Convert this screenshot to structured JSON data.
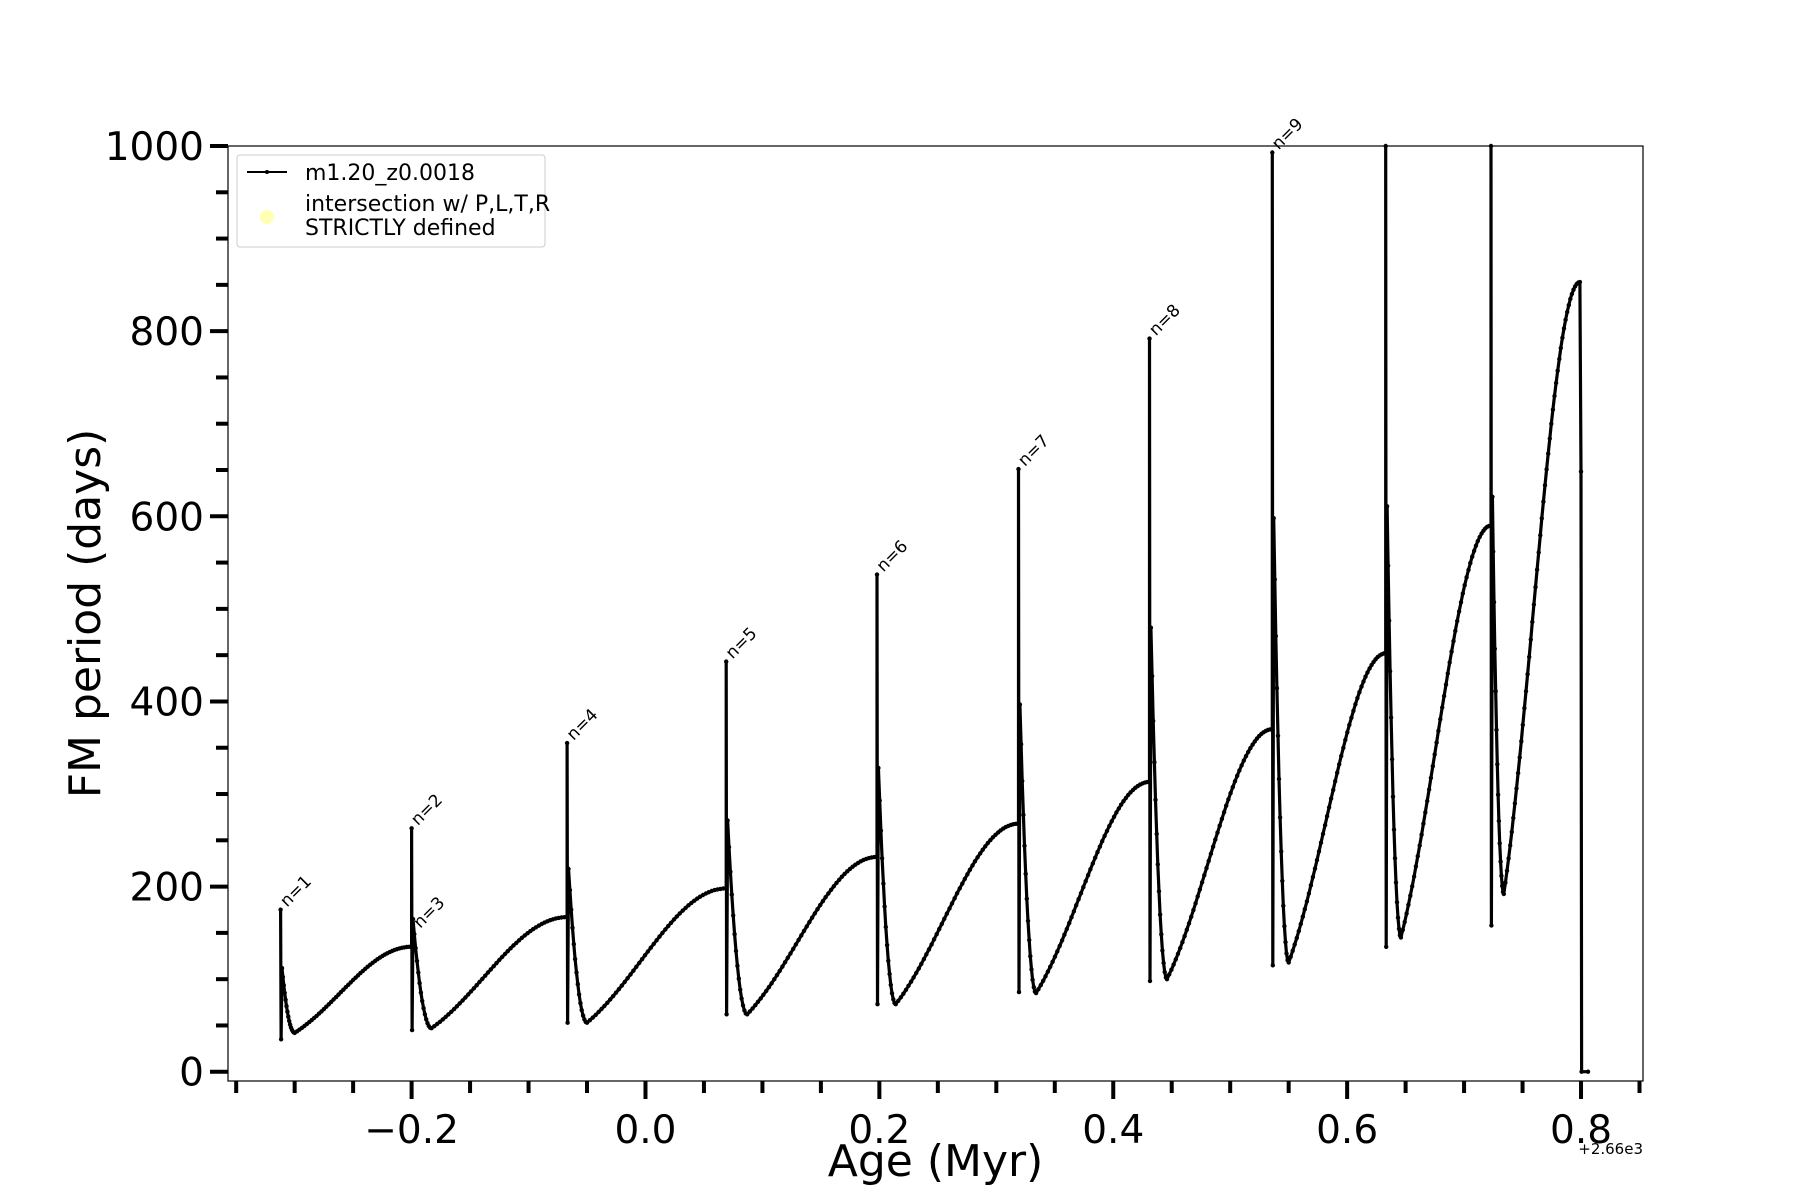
{
  "chart_data": {
    "type": "line",
    "xlabel": "Age (Myr)",
    "ylabel": "FM period (days)",
    "x_offset_label": "+2.66e3",
    "xlim": [
      -0.357,
      0.853
    ],
    "ylim": [
      -10,
      1000
    ],
    "x_ticks": [
      -0.2,
      0.0,
      0.2,
      0.4,
      0.6,
      0.8
    ],
    "x_tick_labels": [
      "−0.2",
      "0.0",
      "0.2",
      "0.4",
      "0.6",
      "0.8"
    ],
    "y_ticks": [
      0,
      200,
      400,
      600,
      800,
      1000
    ],
    "y_tick_labels": [
      "0",
      "200",
      "400",
      "600",
      "800",
      "1000"
    ],
    "grid": false,
    "legend": {
      "position": "top-left",
      "entries": [
        {
          "label": "m1.20_z0.0018",
          "color": "#000000",
          "marker": "line"
        },
        {
          "label_lines": [
            "intersection w/ P,L,T,R",
            "STRICTLY defined"
          ],
          "color": "#ffffb3",
          "marker": "circle"
        }
      ]
    },
    "series": [
      {
        "name": "m1.20_z0.0018",
        "color": "#000000",
        "cycles": [
          {
            "x_start": -0.312,
            "p_peak": 175,
            "p_dip": 35,
            "x_min": -0.3,
            "p_min": 42,
            "x_end": -0.2,
            "p_end": 135
          },
          {
            "x_start": -0.2,
            "p_peak": 263,
            "p_dip": 45,
            "x_min": -0.183,
            "p_min": 47,
            "x_end": -0.067,
            "p_end": 167
          },
          {
            "x_start": -0.067,
            "p_peak": 355,
            "p_dip": 53,
            "x_min": -0.05,
            "p_min": 53,
            "x_end": 0.069,
            "p_end": 198
          },
          {
            "x_start": 0.069,
            "p_peak": 443,
            "p_dip": 62,
            "x_min": 0.087,
            "p_min": 62,
            "x_end": 0.198,
            "p_end": 232
          },
          {
            "x_start": 0.198,
            "p_peak": 537,
            "p_dip": 73,
            "x_min": 0.214,
            "p_min": 73,
            "x_end": 0.319,
            "p_end": 268
          },
          {
            "x_start": 0.319,
            "p_peak": 651,
            "p_dip": 86,
            "x_min": 0.334,
            "p_min": 85,
            "x_end": 0.431,
            "p_end": 313
          },
          {
            "x_start": 0.431,
            "p_peak": 792,
            "p_dip": 98,
            "x_min": 0.446,
            "p_min": 100,
            "x_end": 0.536,
            "p_end": 370
          },
          {
            "x_start": 0.536,
            "p_peak": 993,
            "p_dip": 115,
            "x_min": 0.55,
            "p_min": 118,
            "x_end": 0.633,
            "p_end": 452
          },
          {
            "x_start": 0.633,
            "p_peak": 1000,
            "p_dip": 135,
            "x_min": 0.646,
            "p_min": 145,
            "x_end": 0.723,
            "p_end": 590
          },
          {
            "x_start": 0.723,
            "p_peak": 1000,
            "p_dip": 158,
            "x_min": 0.734,
            "p_min": 192,
            "x_end": 0.799,
            "p_end": 853
          }
        ],
        "final_drop": {
          "x": 0.8,
          "p_to": 0,
          "x_end": 0.806
        }
      }
    ],
    "annotations": [
      {
        "text": "n=1",
        "x": -0.31,
        "y": 175
      },
      {
        "text": "n=2",
        "x": -0.198,
        "y": 263
      },
      {
        "text": "n=3",
        "x": -0.196,
        "y": 152
      },
      {
        "text": "n=4",
        "x": -0.065,
        "y": 355
      },
      {
        "text": "n=5",
        "x": 0.071,
        "y": 443
      },
      {
        "text": "n=6",
        "x": 0.2,
        "y": 537
      },
      {
        "text": "n=7",
        "x": 0.321,
        "y": 651
      },
      {
        "text": "n=8",
        "x": 0.433,
        "y": 792
      },
      {
        "text": "n=9",
        "x": 0.538,
        "y": 993
      }
    ]
  }
}
